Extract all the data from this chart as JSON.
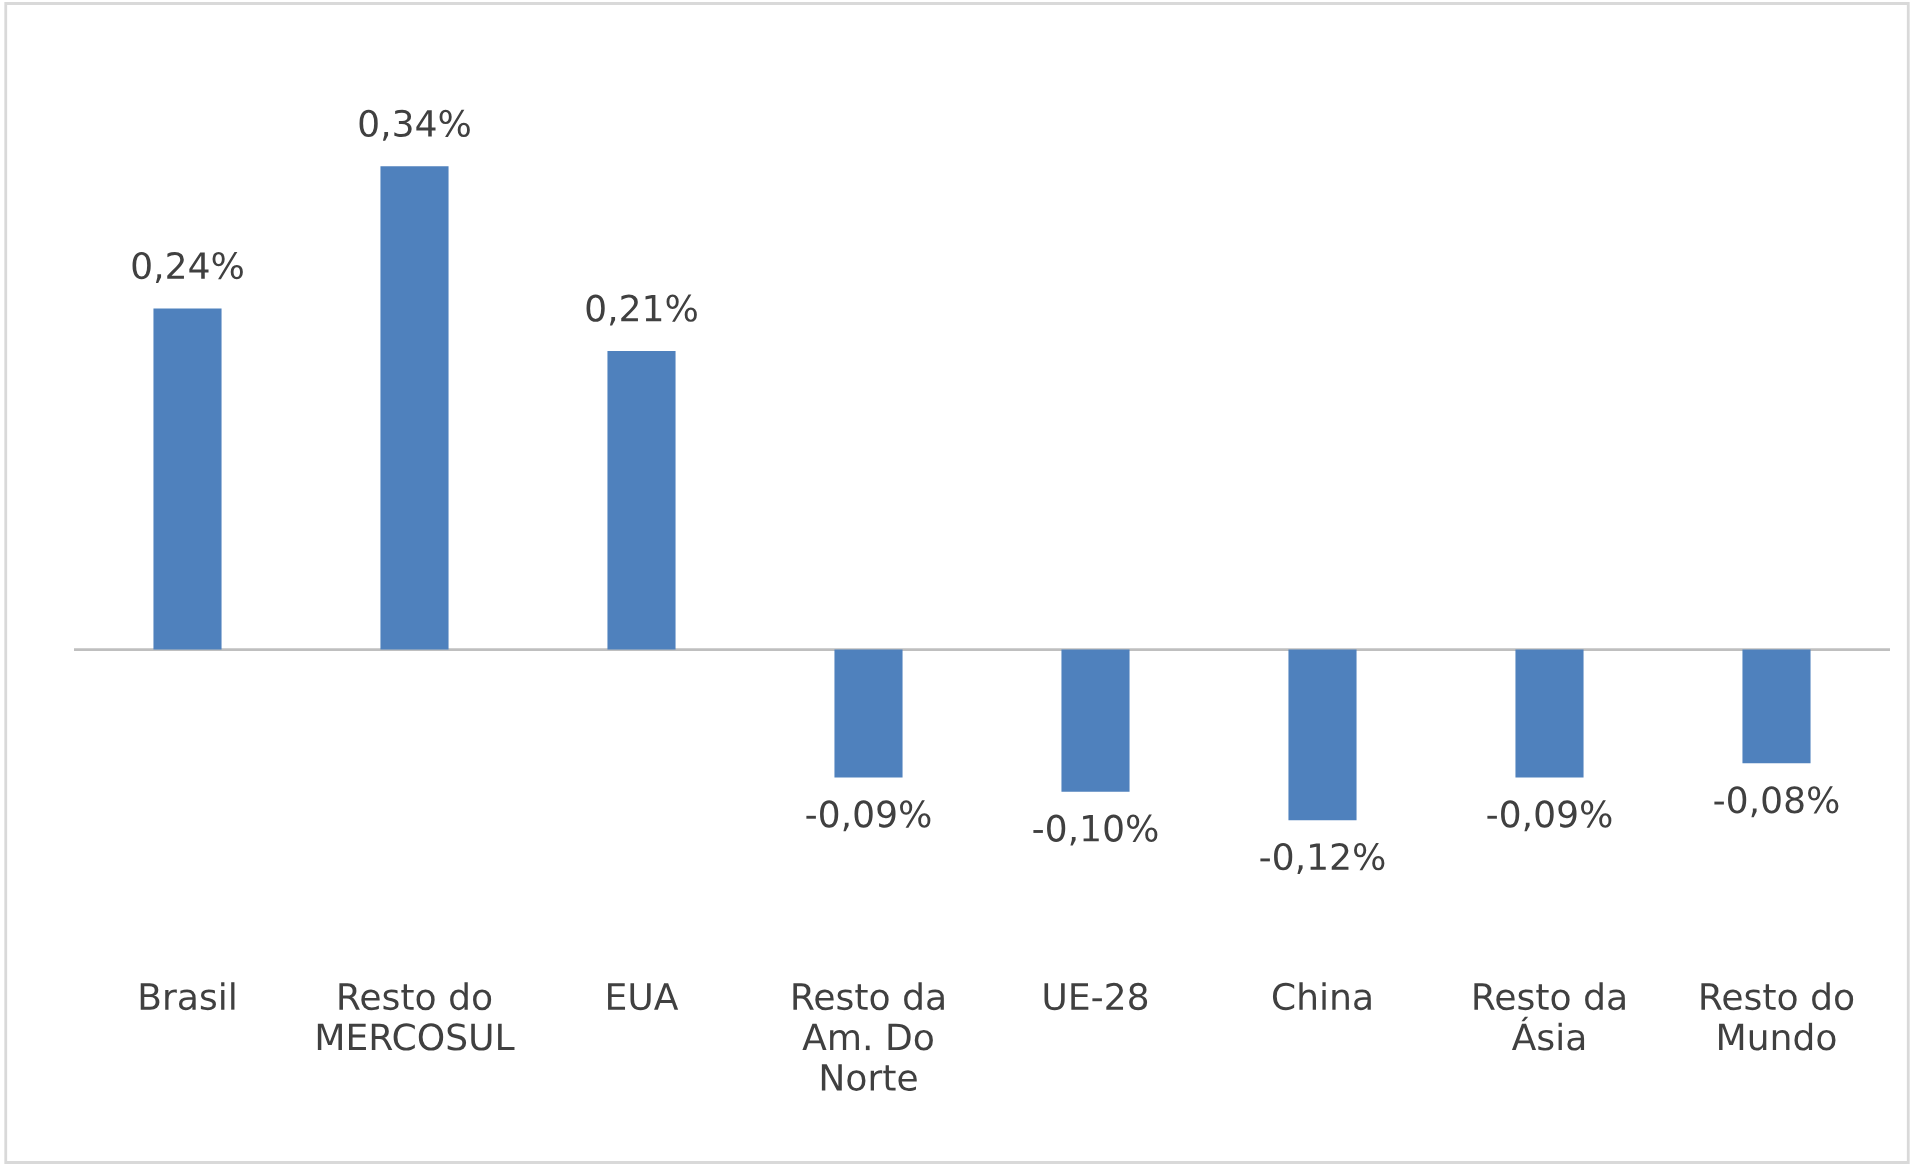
{
  "chart_data": {
    "type": "bar",
    "categories": [
      "Brasil",
      "Resto do\nMERCOSUL",
      "EUA",
      "Resto da\nAm. Do\nNorte",
      "UE-28",
      "China",
      "Resto da\nÁsia",
      "Resto do\nMundo"
    ],
    "values": [
      0.24,
      0.34,
      0.21,
      -0.09,
      -0.1,
      -0.12,
      -0.09,
      -0.08
    ],
    "value_labels": [
      "0,24%",
      "0,34%",
      "0,21%",
      "-0,09%",
      "-0,10%",
      "-0,12%",
      "-0,09%",
      "-0,08%"
    ],
    "color": "#4f81bd",
    "grid": false,
    "legend": false
  }
}
